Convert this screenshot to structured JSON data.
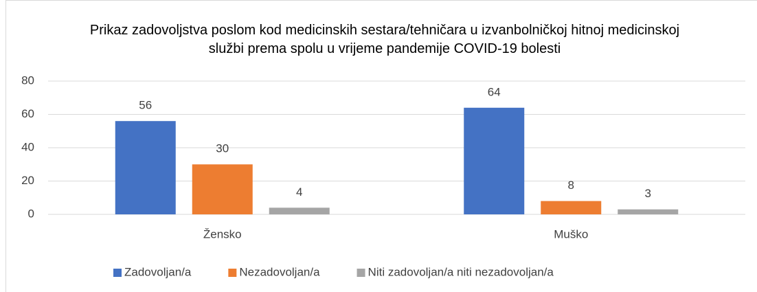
{
  "chart_data": {
    "type": "bar",
    "title": "Prikaz zadovoljstva poslom kod medicinskih sestara/tehničara u izvanbolničkoj hitnoj medicinskoj službi prema spolu u vrijeme pandemije COVID-19 bolesti",
    "categories": [
      "Žensko",
      "Muško"
    ],
    "series": [
      {
        "name": "Zadovoljan/a",
        "color": "#4472c4",
        "values": [
          56,
          64
        ]
      },
      {
        "name": "Nezadovoljan/a",
        "color": "#ed7d31",
        "values": [
          30,
          8
        ]
      },
      {
        "name": "Niti zadovoljan/a niti nezadovoljan/a",
        "color": "#a5a5a5",
        "values": [
          4,
          3
        ]
      }
    ],
    "ylim": [
      0,
      80
    ],
    "yticks": [
      0,
      20,
      40,
      60,
      80
    ],
    "grid": true,
    "legend": "bottom"
  }
}
